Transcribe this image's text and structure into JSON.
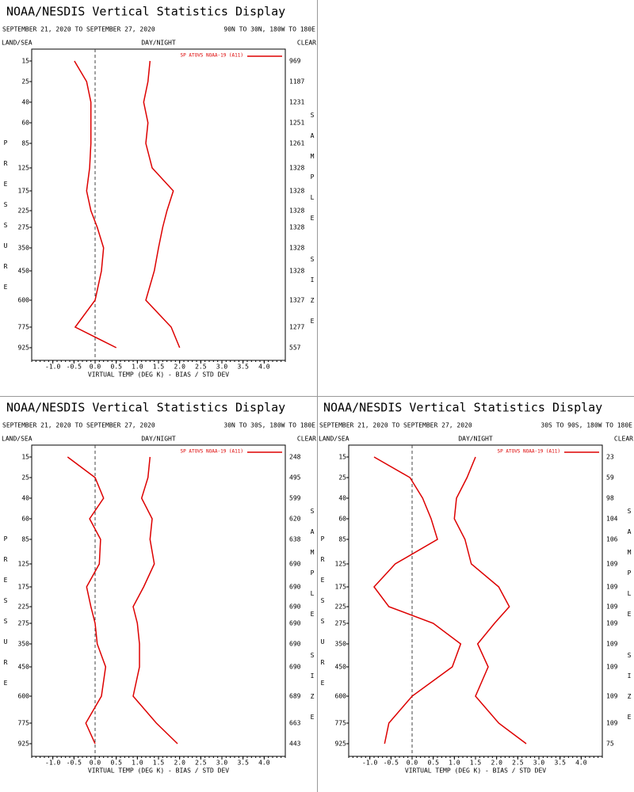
{
  "chart_data": [
    {
      "type": "line",
      "title": "NOAA/NESDIS Vertical Statistics Display",
      "subtitle": "SEPTEMBER 21, 2020 TO SEPTEMBER 27, 2020",
      "region": "90N TO 30N, 180W TO 180E",
      "left_header": "LAND/SEA",
      "center_header": "DAY/NIGHT",
      "right_header": "CLEAR",
      "ylabel": "PRESSURE",
      "y2label": "SAMPLE SIZE",
      "xlabel": "VIRTUAL TEMP (DEG K) - BIAS / STD DEV",
      "categories": [
        "15",
        "25",
        "40",
        "60",
        "85",
        "125",
        "175",
        "225",
        "275",
        "350",
        "450",
        "600",
        "775",
        "925"
      ],
      "sample_sizes": [
        "969",
        "1187",
        "1231",
        "1251",
        "1261",
        "1328",
        "1328",
        "1328",
        "1328",
        "1328",
        "1328",
        "1327",
        "1277",
        "557"
      ],
      "series": [
        {
          "name": "SP ATOVS NOAA-19 (A11)",
          "color": "#dd0000",
          "values": [
            -0.49,
            -0.2,
            -0.1,
            -0.1,
            -0.1,
            -0.13,
            -0.2,
            -0.1,
            0.05,
            0.2,
            0.15,
            0.0,
            -0.47,
            0.5
          ],
          "std_dev": [
            1.3,
            1.25,
            1.15,
            1.25,
            1.2,
            1.35,
            1.85,
            1.7,
            1.6,
            1.5,
            1.4,
            1.2,
            1.8,
            2.0
          ]
        }
      ],
      "xlim": [
        -1.5,
        4.5
      ],
      "xticks": [
        {
          "value": -1,
          "label": "-1.0"
        },
        -0.5,
        {
          "value": 0,
          "label": "0.0"
        },
        0.5,
        {
          "value": 1,
          "label": "1.0"
        },
        1.5,
        {
          "value": 2,
          "label": "2.0"
        },
        2.5,
        {
          "value": 3,
          "label": "3.0"
        },
        3.5,
        {
          "value": 4,
          "label": "4.0"
        }
      ]
    },
    {
      "type": "line",
      "title": "NOAA/NESDIS Vertical Statistics Display",
      "subtitle": "SEPTEMBER 21, 2020 TO SEPTEMBER 27, 2020",
      "region": "30N TO 30S, 180W TO 180E",
      "left_header": "LAND/SEA",
      "center_header": "DAY/NIGHT",
      "right_header": "CLEAR",
      "ylabel": "PRESSURE",
      "y2label": "SAMPLE SIZE",
      "xlabel": "VIRTUAL TEMP (DEG K) - BIAS / STD DEV",
      "categories": [
        "15",
        "25",
        "40",
        "60",
        "85",
        "125",
        "175",
        "225",
        "275",
        "350",
        "450",
        "600",
        "775",
        "925"
      ],
      "sample_sizes": [
        "248",
        "495",
        "599",
        "620",
        "638",
        "690",
        "690",
        "690",
        "690",
        "690",
        "690",
        "689",
        "663",
        "443"
      ],
      "series": [
        {
          "name": "SP ATOVS NOAA-19 (A11)",
          "color": "#dd0000",
          "values": [
            -0.65,
            0.0,
            0.2,
            -0.13,
            0.13,
            0.1,
            -0.2,
            -0.1,
            0.0,
            0.05,
            0.25,
            0.15,
            -0.22,
            0.0
          ],
          "std_dev": [
            1.3,
            1.25,
            1.1,
            1.35,
            1.3,
            1.4,
            1.15,
            0.9,
            1.0,
            1.05,
            1.05,
            0.9,
            1.45,
            1.95
          ]
        }
      ],
      "xlim": [
        -1.5,
        4.5
      ],
      "xticks": [
        {
          "value": -1,
          "label": "-1.0"
        },
        -0.5,
        {
          "value": 0,
          "label": "0.0"
        },
        0.5,
        {
          "value": 1,
          "label": "1.0"
        },
        1.5,
        {
          "value": 2,
          "label": "2.0"
        },
        2.5,
        {
          "value": 3,
          "label": "3.0"
        },
        3.5,
        {
          "value": 4,
          "label": "4.0"
        }
      ]
    },
    {
      "type": "line",
      "title": "NOAA/NESDIS Vertical Statistics Display",
      "subtitle": "SEPTEMBER 21, 2020 TO SEPTEMBER 27, 2020",
      "region": "30S TO 90S, 180W TO 180E",
      "left_header": "LAND/SEA",
      "center_header": "DAY/NIGHT",
      "right_header": "CLEAR",
      "ylabel": "PRESSURE",
      "y2label": "SAMPLE SIZE",
      "xlabel": "VIRTUAL TEMP (DEG K) - BIAS / STD DEV",
      "categories": [
        "15",
        "25",
        "40",
        "60",
        "85",
        "125",
        "175",
        "225",
        "275",
        "350",
        "450",
        "600",
        "775",
        "925"
      ],
      "sample_sizes": [
        "23",
        "59",
        "98",
        "104",
        "106",
        "109",
        "109",
        "109",
        "109",
        "109",
        "109",
        "109",
        "109",
        "75"
      ],
      "series": [
        {
          "name": "SP ATOVS NOAA-19 (A11)",
          "color": "#dd0000",
          "values": [
            -0.9,
            -0.05,
            0.25,
            0.45,
            0.6,
            -0.4,
            -0.9,
            -0.55,
            0.5,
            1.15,
            0.95,
            0.0,
            -0.55,
            -0.65
          ],
          "std_dev": [
            1.5,
            1.3,
            1.05,
            1.0,
            1.25,
            1.4,
            2.05,
            2.3,
            1.95,
            1.55,
            1.8,
            1.5,
            2.05,
            2.7
          ]
        }
      ],
      "xlim": [
        -1.5,
        4.5
      ],
      "xticks": [
        {
          "value": -1,
          "label": "-1.0"
        },
        -0.5,
        {
          "value": 0,
          "label": "0.0"
        },
        0.5,
        {
          "value": 1,
          "label": "1.0"
        },
        1.5,
        {
          "value": 2,
          "label": "2.0"
        },
        2.5,
        {
          "value": 3,
          "label": "3.0"
        },
        3.5,
        {
          "value": 4,
          "label": "4.0"
        }
      ]
    }
  ]
}
